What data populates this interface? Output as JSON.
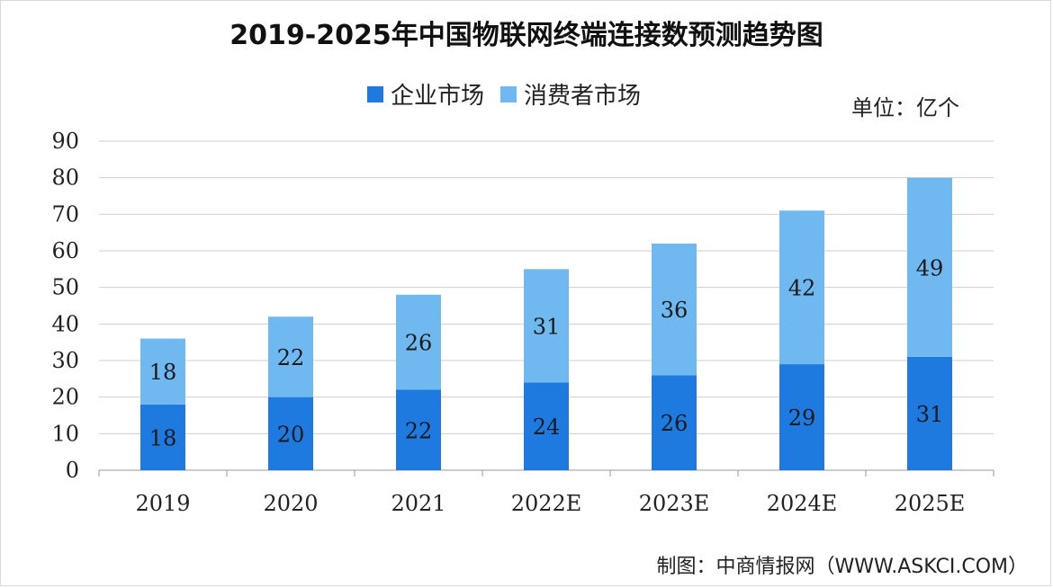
{
  "title": "2019-2025年中国物联网终端连接数预测趋势图",
  "unit_label": "单位：亿个",
  "source": "制图：中商情报网（WWW.ASKCI.COM）",
  "colors": {
    "enterprise": "#1f7ae0",
    "consumer": "#6fb8f0",
    "grid": "#cfcfcf",
    "axis": "#9a9a9a"
  },
  "chart_data": {
    "type": "bar",
    "stacked": true,
    "categories": [
      "2019",
      "2020",
      "2021",
      "2022E",
      "2023E",
      "2024E",
      "2025E"
    ],
    "series": [
      {
        "name": "企业市场",
        "values": [
          18,
          20,
          22,
          24,
          26,
          29,
          31
        ]
      },
      {
        "name": "消费者市场",
        "values": [
          18,
          22,
          26,
          31,
          36,
          42,
          49
        ]
      }
    ],
    "title": "2019-2025年中国物联网终端连接数预测趋势图",
    "xlabel": "",
    "ylabel": "",
    "ylim": [
      0,
      90
    ],
    "yticks": [
      0,
      10,
      20,
      30,
      40,
      50,
      60,
      70,
      80,
      90
    ],
    "grid": true,
    "legend": "top-center"
  }
}
